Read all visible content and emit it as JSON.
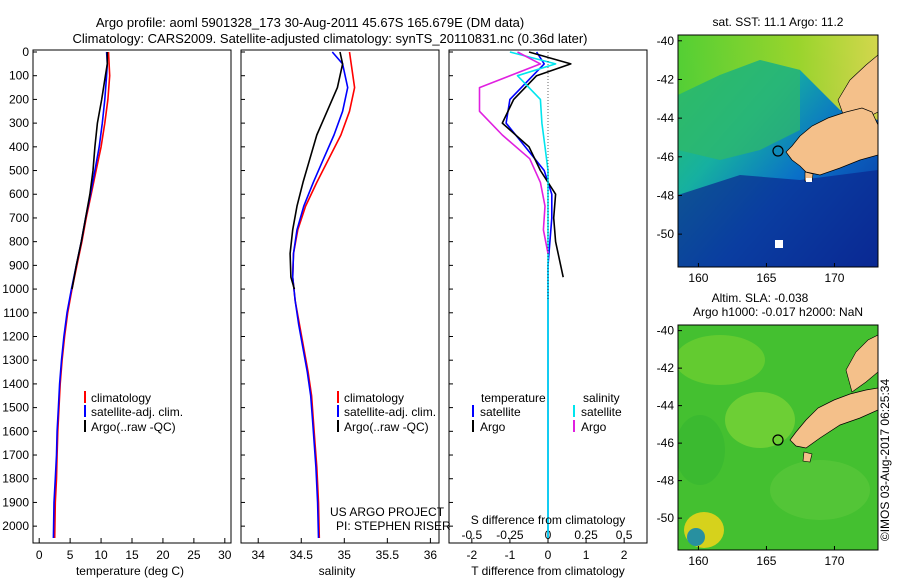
{
  "header": {
    "title_line1": "Argo profile: aoml 5901328_173 30-Aug-2011 45.67S 165.679E (DM data)",
    "title_line2": "Climatology: CARS2009. Satellite-adjusted climatology: synTS_20110831.nc (0.36d later)"
  },
  "colors": {
    "climatology": "#ff0000",
    "satellite": "#0000ff",
    "argo": "#000000",
    "salinity_satellite": "#00e5ee",
    "salinity_argo": "#e020e0",
    "land": "#f4c08a"
  },
  "credits": {
    "line1": "US ARGO PROJECT",
    "line2": "PI: STEPHEN RISER"
  },
  "timestamp": "©IMOS 03-Aug-2017 06:25:34",
  "chart_data": [
    {
      "type": "line",
      "panel": "temperature",
      "xlabel": "temperature (deg C)",
      "ylabel": "",
      "xlim": [
        -1,
        31
      ],
      "ylim": [
        2050,
        0
      ],
      "xticks": [
        0,
        5,
        10,
        15,
        20,
        25,
        30
      ],
      "yticks": [
        0,
        100,
        200,
        300,
        400,
        500,
        600,
        700,
        800,
        900,
        1000,
        1100,
        1200,
        1300,
        1400,
        1500,
        1600,
        1700,
        1800,
        1900,
        2000
      ],
      "legend": [
        "climatology",
        "satellite-adj. clim.",
        "Argo(..raw -QC)"
      ],
      "series": [
        {
          "name": "climatology",
          "color": "#ff0000",
          "x": [
            11.2,
            11.3,
            11.4,
            11.1,
            10.6,
            10.0,
            9.2,
            8.4,
            7.6,
            6.9,
            6.1,
            5.3,
            4.6,
            4.1,
            3.7,
            3.4,
            3.2,
            3.0,
            2.9,
            2.8,
            2.6,
            2.5
          ],
          "y": [
            0,
            50,
            100,
            200,
            300,
            400,
            500,
            600,
            700,
            800,
            900,
            1000,
            1100,
            1200,
            1300,
            1400,
            1500,
            1600,
            1700,
            1800,
            1900,
            2050
          ]
        },
        {
          "name": "satellite-adj. clim.",
          "color": "#0000ff",
          "x": [
            10.9,
            11.0,
            10.9,
            10.6,
            10.2,
            9.7,
            9.0,
            8.3,
            7.5,
            6.8,
            6.0,
            5.2,
            4.5,
            4.0,
            3.6,
            3.3,
            3.1,
            2.9,
            2.8,
            2.6,
            2.4,
            2.3
          ],
          "y": [
            0,
            50,
            100,
            200,
            300,
            400,
            500,
            600,
            700,
            800,
            900,
            1000,
            1100,
            1200,
            1300,
            1400,
            1500,
            1600,
            1700,
            1800,
            1900,
            2050
          ]
        },
        {
          "name": "Argo(..raw -QC)",
          "color": "#000000",
          "x": [
            11.0,
            11.0,
            10.7,
            10.1,
            9.4,
            9.0,
            8.7,
            8.2,
            7.5,
            6.8,
            6.0,
            5.3
          ],
          "y": [
            0,
            50,
            100,
            200,
            300,
            400,
            500,
            600,
            700,
            800,
            900,
            1000
          ]
        }
      ]
    },
    {
      "type": "line",
      "panel": "salinity",
      "xlabel": "salinity",
      "ylabel": "",
      "xlim": [
        33.8,
        36.1
      ],
      "ylim": [
        2050,
        0
      ],
      "xticks": [
        34,
        34.5,
        35,
        35.5,
        36
      ],
      "xticklabels": [
        "34",
        "34.5",
        "35",
        "35.5",
        "36"
      ],
      "legend": [
        "climatology",
        "satellite-adj. clim.",
        "Argo(..raw -QC)"
      ],
      "series": [
        {
          "name": "climatology",
          "color": "#ff0000",
          "x": [
            35.06,
            35.08,
            35.12,
            35.06,
            34.96,
            34.82,
            34.68,
            34.55,
            34.46,
            34.41,
            34.4,
            34.43,
            34.48,
            34.53,
            34.58,
            34.62,
            34.64,
            34.66,
            34.68,
            34.7,
            34.71
          ],
          "y": [
            0,
            50,
            150,
            250,
            350,
            450,
            550,
            650,
            750,
            850,
            950,
            1050,
            1150,
            1250,
            1350,
            1450,
            1550,
            1650,
            1750,
            1900,
            2050
          ]
        },
        {
          "name": "satellite-adj. clim.",
          "color": "#0000ff",
          "x": [
            34.86,
            34.98,
            35.04,
            34.98,
            34.88,
            34.76,
            34.64,
            34.53,
            34.45,
            34.41,
            34.4,
            34.43,
            34.47,
            34.52,
            34.57,
            34.61,
            34.63,
            34.65,
            34.67,
            34.69,
            34.7
          ],
          "y": [
            0,
            50,
            150,
            250,
            350,
            450,
            550,
            650,
            750,
            850,
            950,
            1050,
            1150,
            1250,
            1350,
            1450,
            1550,
            1650,
            1750,
            1900,
            2050
          ]
        },
        {
          "name": "Argo(..raw -QC)",
          "color": "#000000",
          "x": [
            34.95,
            34.98,
            34.92,
            34.8,
            34.68,
            34.6,
            34.52,
            34.45,
            34.4,
            34.37,
            34.38,
            34.42
          ],
          "y": [
            0,
            50,
            150,
            250,
            350,
            450,
            550,
            650,
            750,
            850,
            950,
            1000
          ]
        }
      ]
    },
    {
      "type": "line",
      "panel": "difference",
      "xlabel": "T difference from climatology",
      "xlabel_top": "S difference from climatology",
      "xlim": [
        -2.6,
        2.6
      ],
      "ylim": [
        2050,
        0
      ],
      "xticks": [
        -2,
        -1,
        0,
        1,
        2
      ],
      "top_ticks": [
        -0.5,
        -0.25,
        0,
        0.25,
        0.5
      ],
      "legend_temperature_title": "temperature",
      "legend_salinity_title": "salinity",
      "legend_temperature": [
        "satellite",
        "Argo"
      ],
      "legend_salinity": [
        "satellite",
        "Argo"
      ],
      "series": [
        {
          "name": "temperature satellite",
          "color": "#0000ff",
          "x": [
            -0.3,
            -0.1,
            -0.4,
            -1.0,
            -1.1,
            -0.6,
            -0.1,
            0.1,
            0.1,
            0.05,
            0.0,
            0.0,
            0.0,
            0.0,
            0.0,
            0.0,
            0.0,
            0.0,
            0.0,
            0.0,
            0.0
          ],
          "y": [
            0,
            50,
            100,
            200,
            300,
            400,
            500,
            600,
            700,
            800,
            900,
            1000,
            1100,
            1200,
            1300,
            1400,
            1500,
            1600,
            1700,
            1800,
            2050
          ]
        },
        {
          "name": "temperature Argo",
          "color": "#000000",
          "x": [
            -0.5,
            0.6,
            -0.3,
            -0.9,
            -1.2,
            -0.5,
            -0.2,
            0.2,
            0.15,
            0.2,
            0.4
          ],
          "y": [
            0,
            50,
            100,
            200,
            300,
            400,
            500,
            600,
            700,
            800,
            950
          ]
        },
        {
          "name": "salinity satellite",
          "color": "#00e5ee",
          "x": [
            -0.25,
            0.05,
            -0.2,
            -0.05,
            -0.04,
            -0.02,
            0.0,
            0.0,
            0.0,
            0.0,
            0.0,
            0.0,
            0.0,
            0.0,
            0.0,
            0.0,
            0.0,
            0.0,
            0.0,
            0.0
          ],
          "y": [
            0,
            50,
            100,
            200,
            300,
            400,
            500,
            600,
            700,
            800,
            900,
            1000,
            1100,
            1200,
            1300,
            1400,
            1500,
            1600,
            1700,
            2050
          ]
        },
        {
          "name": "salinity Argo",
          "color": "#e020e0",
          "x": [
            -0.2,
            -0.05,
            -0.45,
            -0.45,
            -0.3,
            -0.12,
            -0.05,
            -0.02,
            -0.03,
            0.0
          ],
          "y": [
            0,
            50,
            150,
            250,
            350,
            450,
            550,
            650,
            750,
            850
          ]
        }
      ]
    }
  ],
  "maps": [
    {
      "title": "sat. SST: 11.1 Argo: 11.2",
      "xticks": [
        160,
        165,
        170
      ],
      "yticks": [
        -40,
        -42,
        -44,
        -46,
        -48,
        -50
      ],
      "xlim": [
        158.5,
        173.2
      ],
      "ylim": [
        -51.7,
        -39.7
      ],
      "profile_location": [
        165.679,
        -45.67
      ]
    },
    {
      "title_line1": "Altim. SLA: -0.038",
      "title_line2": "Argo h1000: -0.017 h2000: NaN",
      "xticks": [
        160,
        165,
        170
      ],
      "yticks": [
        -40,
        -42,
        -44,
        -46,
        -48,
        -50
      ],
      "xlim": [
        158.5,
        173.2
      ],
      "ylim": [
        -51.7,
        -39.7
      ],
      "profile_location": [
        165.679,
        -45.67
      ]
    }
  ]
}
